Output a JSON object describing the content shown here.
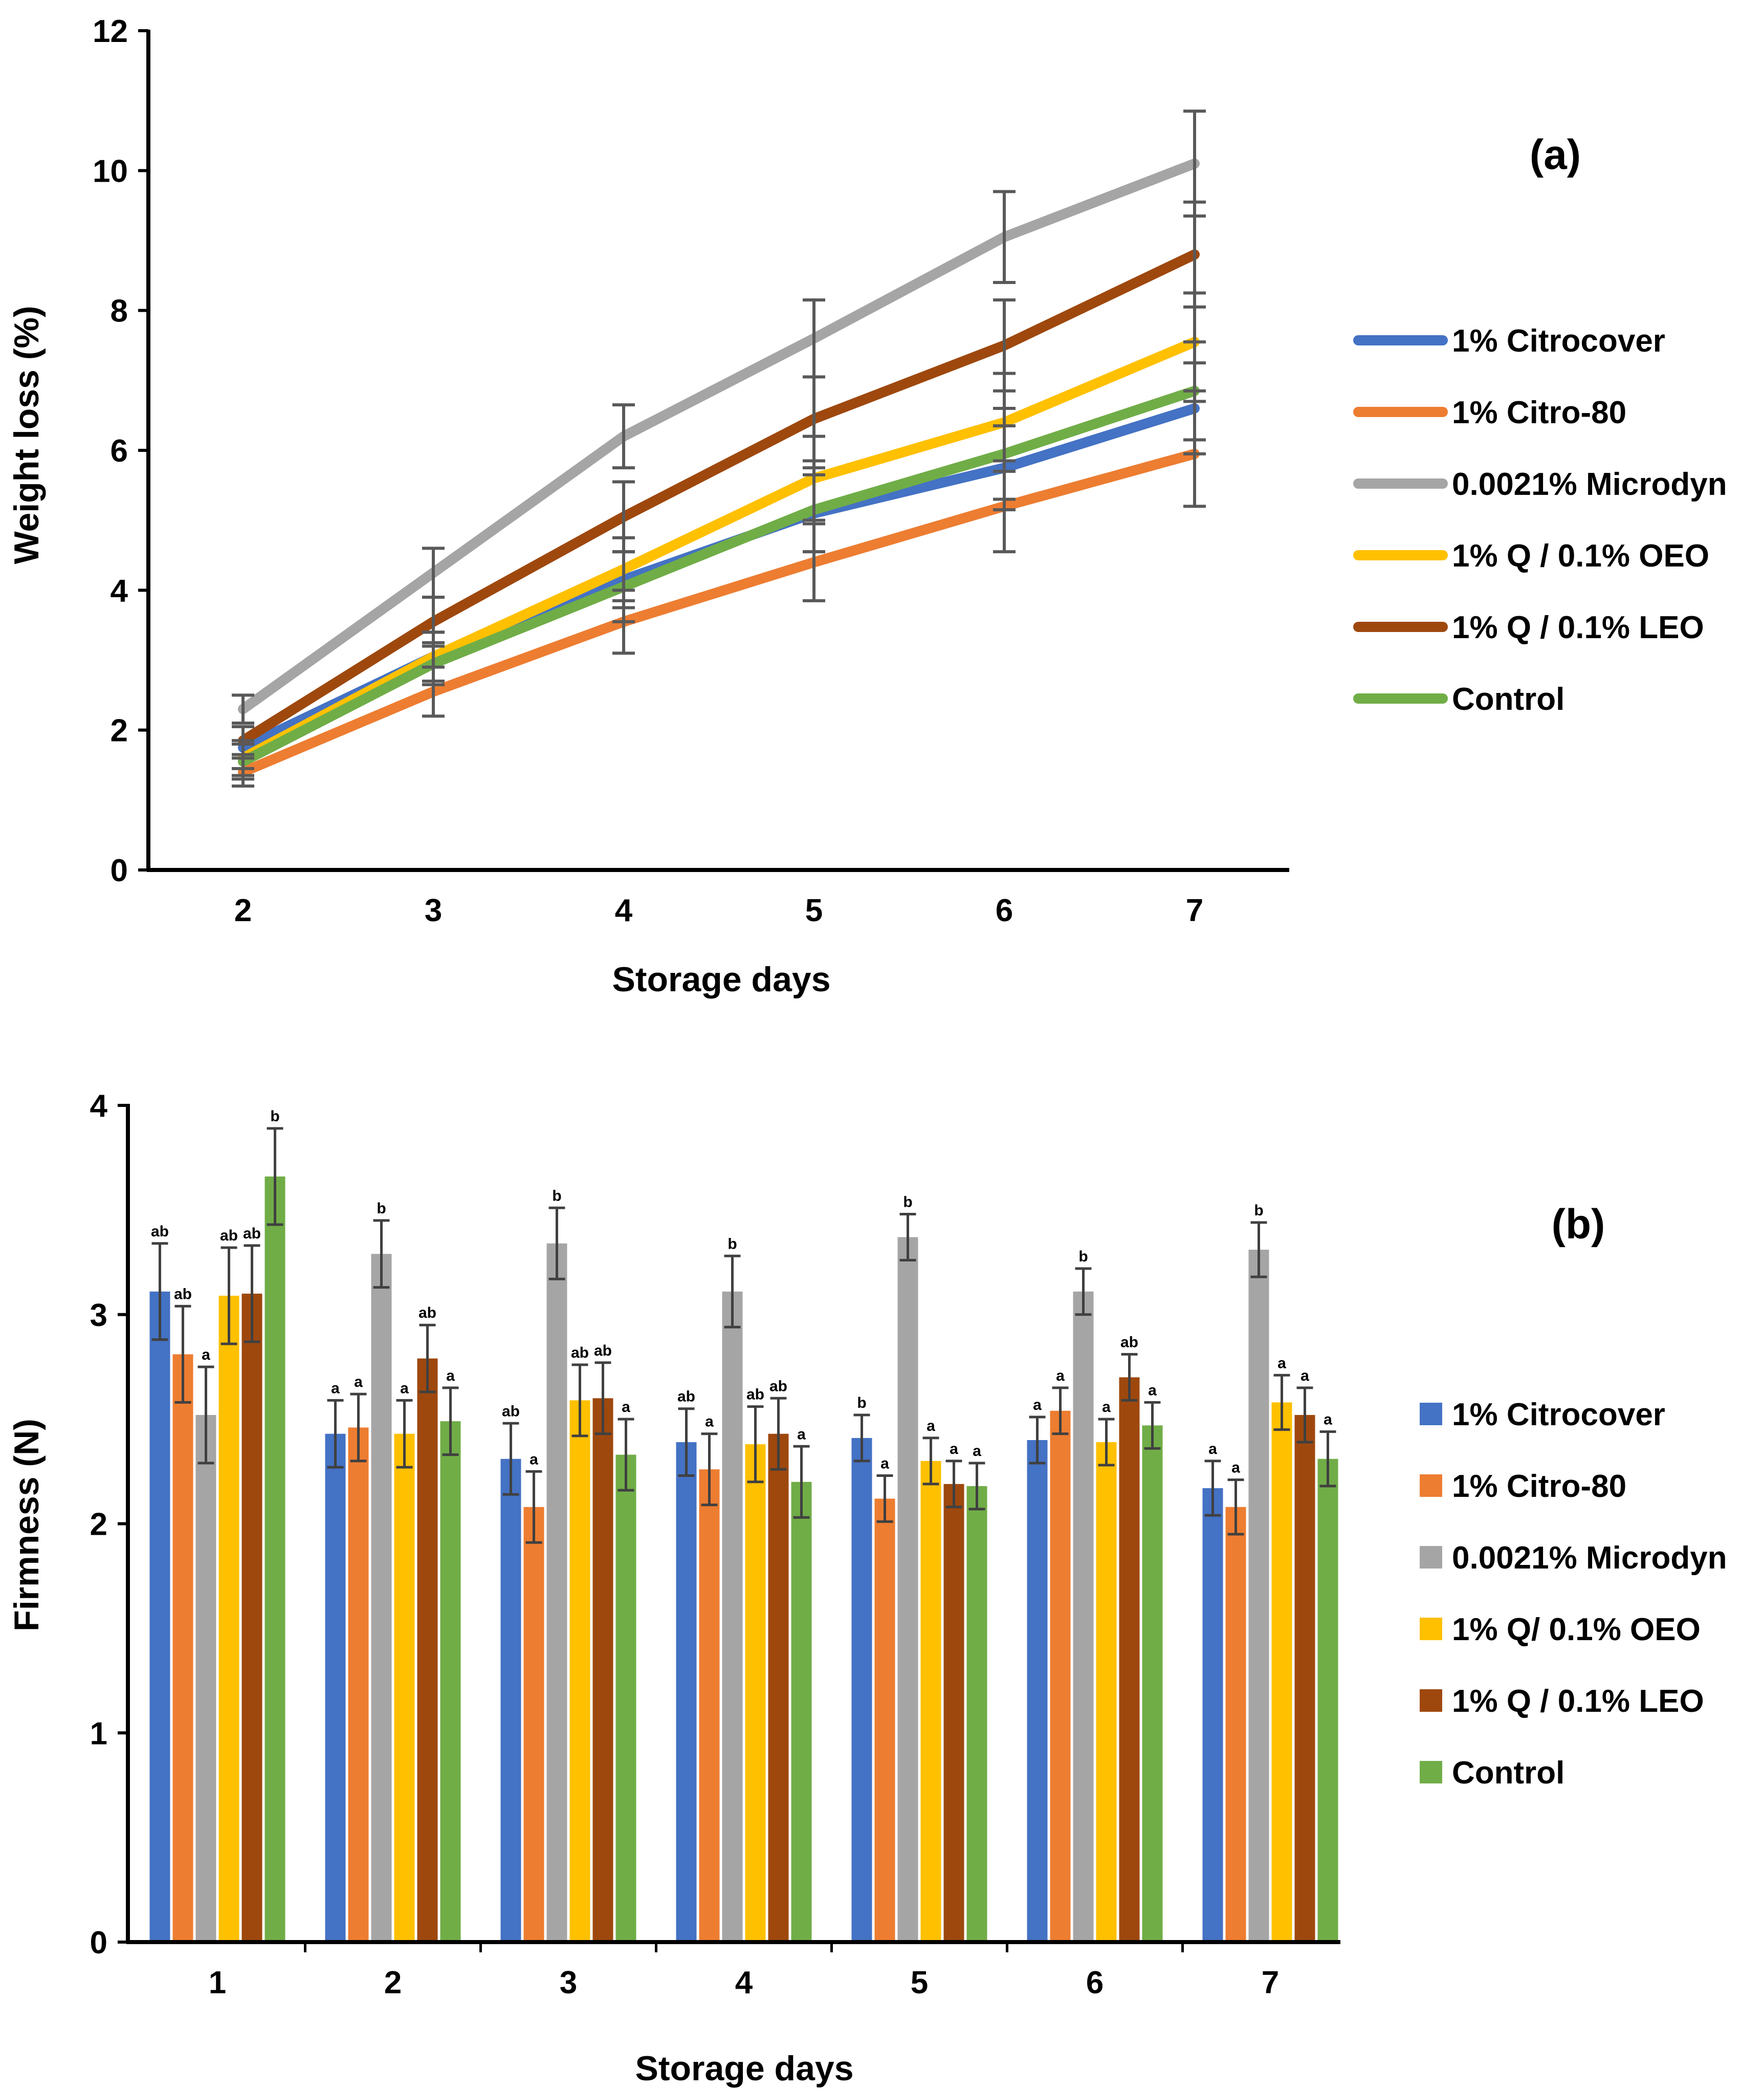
{
  "chart_data": [
    {
      "type": "line",
      "panel_label": "(a)",
      "title": "",
      "xlabel": "Storage days",
      "ylabel": "Weight loss (%)",
      "x": [
        2,
        3,
        4,
        5,
        6,
        7
      ],
      "x_tick_labels": [
        "2",
        "3",
        "4",
        "5",
        "6",
        "7"
      ],
      "ylim": [
        0,
        12
      ],
      "y_ticks": [
        0,
        2,
        4,
        6,
        8,
        10,
        12
      ],
      "y_tick_labels": [
        "0",
        "2",
        "4",
        "6",
        "8",
        "10",
        "12"
      ],
      "grid": false,
      "legend_position": "right",
      "series": [
        {
          "name": "1% Citrocover",
          "color": "#4472C4",
          "values": [
            1.75,
            3.05,
            4.15,
            5.1,
            5.75,
            6.6
          ],
          "errors": [
            0.3,
            0.35,
            0.4,
            0.55,
            0.6,
            0.65
          ]
        },
        {
          "name": "1% Citro-80",
          "color": "#ED7D31",
          "values": [
            1.4,
            2.55,
            3.55,
            4.4,
            5.2,
            5.95
          ],
          "errors": [
            0.2,
            0.35,
            0.45,
            0.55,
            0.65,
            0.75
          ]
        },
        {
          "name": "0.0021% Microdyn",
          "color": "#A5A5A5",
          "values": [
            2.3,
            4.25,
            6.2,
            7.6,
            9.05,
            10.1
          ],
          "errors": [
            0.2,
            0.35,
            0.45,
            0.55,
            0.65,
            0.75
          ]
        },
        {
          "name": "1% Q / 0.1% OEO",
          "color": "#FFC000",
          "values": [
            1.6,
            3.05,
            4.3,
            5.6,
            6.4,
            7.55
          ],
          "errors": [
            0.25,
            0.35,
            0.45,
            0.6,
            0.7,
            0.7
          ]
        },
        {
          "name": "1% Q / 0.1% LEO",
          "color": "#9E480E",
          "values": [
            1.85,
            3.55,
            5.05,
            6.45,
            7.5,
            8.8
          ],
          "errors": [
            0.2,
            0.35,
            0.5,
            0.6,
            0.65,
            0.75
          ]
        },
        {
          "name": "Control",
          "color": "#70AD47",
          "values": [
            1.55,
            2.95,
            4.05,
            5.15,
            5.95,
            6.85
          ],
          "errors": [
            0.25,
            0.3,
            0.5,
            0.6,
            0.65,
            0.7
          ]
        }
      ]
    },
    {
      "type": "bar",
      "panel_label": "(b)",
      "title": "",
      "xlabel": "Storage days",
      "ylabel": "Firmness (N)",
      "categories": [
        "1",
        "2",
        "3",
        "4",
        "5",
        "6",
        "7"
      ],
      "ylim": [
        0,
        4
      ],
      "y_ticks": [
        0,
        1,
        2,
        3,
        4
      ],
      "y_tick_labels": [
        "0",
        "1",
        "2",
        "3",
        "4"
      ],
      "grid": false,
      "legend_position": "right",
      "series": [
        {
          "name": "1% Citrocover",
          "color": "#4472C4",
          "values": [
            3.11,
            2.43,
            2.31,
            2.39,
            2.41,
            2.4,
            2.17
          ],
          "errors": [
            0.23,
            0.16,
            0.17,
            0.16,
            0.11,
            0.11,
            0.13
          ],
          "letters": [
            "ab",
            "a",
            "ab",
            "ab",
            "b",
            "a",
            "a"
          ]
        },
        {
          "name": "1% Citro-80",
          "color": "#ED7D31",
          "values": [
            2.81,
            2.46,
            2.08,
            2.26,
            2.12,
            2.54,
            2.08
          ],
          "errors": [
            0.23,
            0.16,
            0.17,
            0.17,
            0.11,
            0.11,
            0.13
          ],
          "letters": [
            "ab",
            "a",
            "a",
            "a",
            "a",
            "a",
            "a"
          ]
        },
        {
          "name": "0.0021% Microdyn",
          "color": "#A5A5A5",
          "values": [
            2.52,
            3.29,
            3.34,
            3.11,
            3.37,
            3.11,
            3.31
          ],
          "errors": [
            0.23,
            0.16,
            0.17,
            0.17,
            0.11,
            0.11,
            0.13
          ],
          "letters": [
            "a",
            "b",
            "b",
            "b",
            "b",
            "b",
            "b"
          ]
        },
        {
          "name": "1% Q/ 0.1% OEO",
          "color": "#FFC000",
          "values": [
            3.09,
            2.43,
            2.59,
            2.38,
            2.3,
            2.39,
            2.58
          ],
          "errors": [
            0.23,
            0.16,
            0.17,
            0.18,
            0.11,
            0.11,
            0.13
          ],
          "letters": [
            "ab",
            "a",
            "ab",
            "ab",
            "a",
            "a",
            "a"
          ]
        },
        {
          "name": "1% Q / 0.1% LEO",
          "color": "#9E480E",
          "values": [
            3.1,
            2.79,
            2.6,
            2.43,
            2.19,
            2.7,
            2.52
          ],
          "errors": [
            0.23,
            0.16,
            0.17,
            0.17,
            0.11,
            0.11,
            0.13
          ],
          "letters": [
            "ab",
            "ab",
            "ab",
            "ab",
            "a",
            "ab",
            "a"
          ]
        },
        {
          "name": "Control",
          "color": "#70AD47",
          "values": [
            3.66,
            2.49,
            2.33,
            2.2,
            2.18,
            2.47,
            2.31
          ],
          "errors": [
            0.23,
            0.16,
            0.17,
            0.17,
            0.11,
            0.11,
            0.13
          ],
          "letters": [
            "b",
            "a",
            "a",
            "a",
            "a",
            "a",
            "a"
          ]
        }
      ]
    }
  ]
}
